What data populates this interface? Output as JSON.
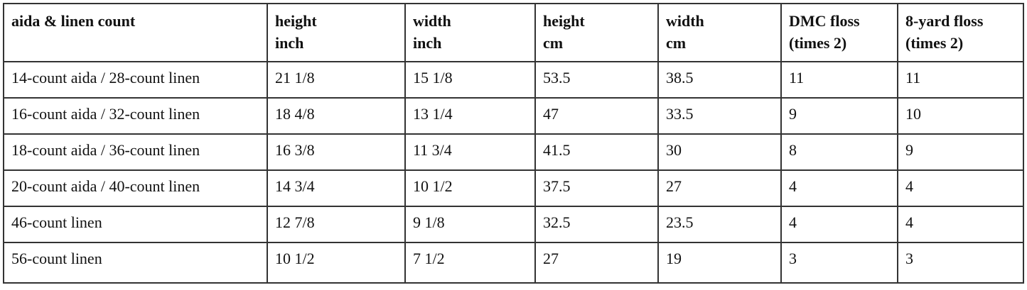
{
  "table": {
    "headers": [
      [
        "aida & linen count"
      ],
      [
        "height",
        "inch"
      ],
      [
        "width",
        "inch"
      ],
      [
        "height",
        "cm"
      ],
      [
        "width",
        "cm"
      ],
      [
        "DMC floss",
        "(times 2)"
      ],
      [
        "8-yard floss",
        "(times 2)"
      ]
    ],
    "rows": [
      [
        "14-count aida / 28-count linen",
        "21 1/8",
        "15 1/8",
        "53.5",
        "38.5",
        "11",
        "11"
      ],
      [
        "16-count aida / 32-count linen",
        "18 4/8",
        "13 1/4",
        "47",
        "33.5",
        "9",
        "10"
      ],
      [
        "18-count aida / 36-count linen",
        "16 3/8",
        "11 3/4",
        "41.5",
        "30",
        "8",
        "9"
      ],
      [
        "20-count aida / 40-count linen",
        "14 3/4",
        "10 1/2",
        "37.5",
        "27",
        "4",
        "4"
      ],
      [
        "46-count linen",
        "12 7/8",
        "9 1/8",
        "32.5",
        "23.5",
        "4",
        "4"
      ],
      [
        "56-count linen",
        "10 1/2",
        "7 1/2",
        "27",
        "19",
        "3",
        "3"
      ]
    ]
  }
}
